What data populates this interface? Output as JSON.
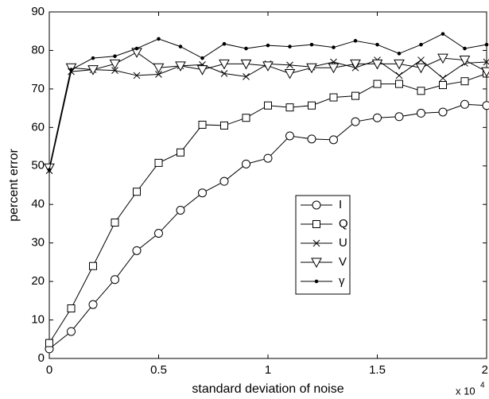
{
  "chart_data": {
    "type": "line",
    "x_label": "standard deviation of noise",
    "y_label": "percent error",
    "x_multiplier": {
      "base": "x 10",
      "exponent": "4"
    },
    "x": [
      0,
      0.1,
      0.2,
      0.3,
      0.4,
      0.5,
      0.6,
      0.7,
      0.8,
      0.9,
      1.0,
      1.1,
      1.2,
      1.3,
      1.4,
      1.5,
      1.6,
      1.7,
      1.8,
      1.9,
      2.0
    ],
    "series": [
      {
        "name": "I",
        "marker": "circle",
        "color": "#000000",
        "values": [
          2.5,
          7,
          14,
          20.5,
          28,
          32.5,
          38.5,
          43,
          46,
          50.5,
          52,
          57.8,
          57,
          56.8,
          61.5,
          62.5,
          62.8,
          63.7,
          64,
          66,
          65.7
        ]
      },
      {
        "name": "Q",
        "marker": "square",
        "color": "#000000",
        "values": [
          4,
          13,
          24,
          35.3,
          43.3,
          50.8,
          53.5,
          60.7,
          60.5,
          62.5,
          65.7,
          65.2,
          65.7,
          67.8,
          68.2,
          71.3,
          71.3,
          69.5,
          71,
          72,
          74
        ]
      },
      {
        "name": "U",
        "marker": "x",
        "color": "#000000",
        "values": [
          48.8,
          74.5,
          75,
          74.8,
          73.5,
          73.8,
          76,
          76.3,
          74,
          73.2,
          76.5,
          76.2,
          75.7,
          77,
          75.5,
          77.5,
          73.5,
          77.5,
          72.8,
          76.7,
          77
        ]
      },
      {
        "name": "V",
        "marker": "triangle-down",
        "color": "#000000",
        "values": [
          49.5,
          75.5,
          75,
          76.5,
          79.5,
          75.5,
          76,
          75,
          76.5,
          76.5,
          76,
          74,
          75.5,
          75.5,
          76.5,
          76.5,
          76.5,
          75.5,
          78,
          77.5,
          74.5
        ]
      },
      {
        "name": "γ",
        "marker": "dot",
        "color": "#000000",
        "values": [
          49,
          75,
          78,
          78.5,
          80.5,
          83,
          81,
          78,
          81.7,
          80.5,
          81.3,
          81,
          81.5,
          80.8,
          82.5,
          81.5,
          79.2,
          81.5,
          84.3,
          80.5,
          81.5
        ]
      }
    ],
    "xlim": [
      0,
      2
    ],
    "xticks": [
      0,
      0.5,
      1,
      1.5,
      2
    ],
    "ylim": [
      0,
      90
    ],
    "yticks": [
      0,
      10,
      20,
      30,
      40,
      50,
      60,
      70,
      80,
      90
    ],
    "grid": false
  }
}
